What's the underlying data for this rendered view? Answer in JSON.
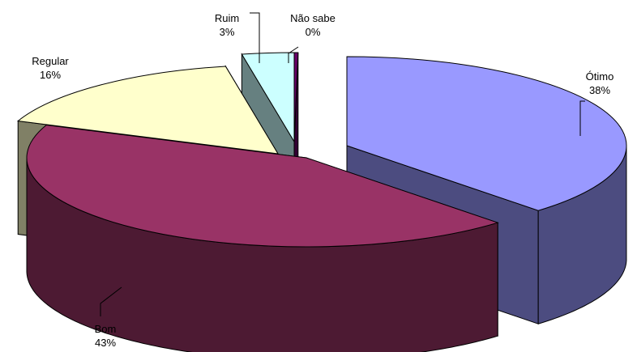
{
  "chart_data": {
    "type": "pie",
    "style": "3d-exploded",
    "legend": "none",
    "slices": [
      {
        "label": "Ótimo",
        "value": 38,
        "display": "38%",
        "color": "#9999ff",
        "side_color": "#4c4c80"
      },
      {
        "label": "Bom",
        "value": 43,
        "display": "43%",
        "color": "#993366",
        "side_color": "#4d1a33"
      },
      {
        "label": "Regular",
        "value": 16,
        "display": "16%",
        "color": "#ffffcc",
        "side_color": "#808066"
      },
      {
        "label": "Ruim",
        "value": 3,
        "display": "3%",
        "color": "#ccffff",
        "side_color": "#668080"
      },
      {
        "label": "Não sabe",
        "value": 0,
        "display": "0%",
        "color": "#660066",
        "side_color": "#330033"
      }
    ]
  }
}
